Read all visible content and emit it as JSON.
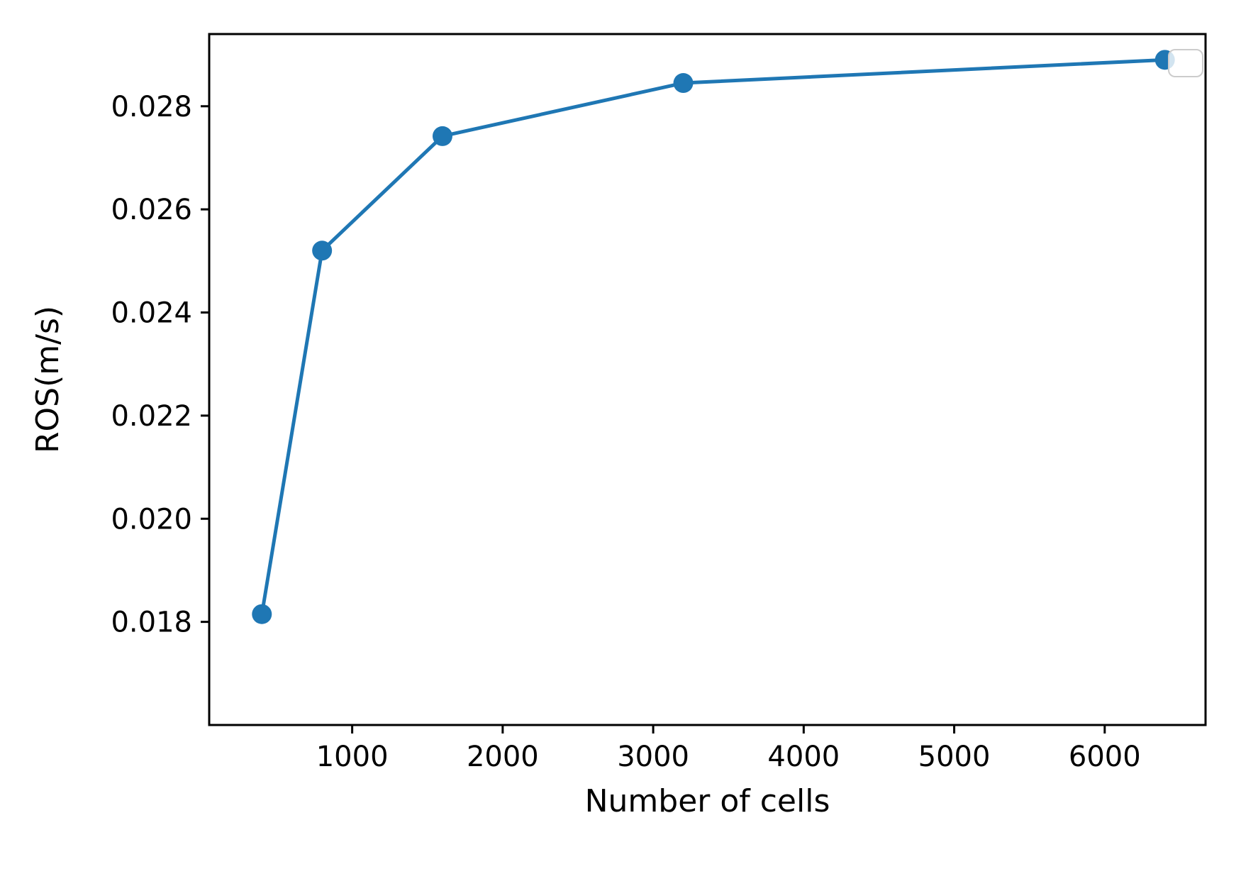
{
  "figure": {
    "background": "#ffffff"
  },
  "chart_data": {
    "type": "line",
    "title": "",
    "xlabel": "Number of cells",
    "ylabel": "ROS(m/s)",
    "x": [
      400,
      800,
      1600,
      3200,
      6400
    ],
    "y": [
      0.01815,
      0.0252,
      0.02742,
      0.02845,
      0.0289
    ],
    "xlim": [
      50,
      6670
    ],
    "ylim": [
      0.016,
      0.0294
    ],
    "xticks": [
      1000,
      2000,
      3000,
      4000,
      5000,
      6000
    ],
    "yticks": [
      0.018,
      0.02,
      0.022,
      0.024,
      0.026,
      0.028
    ],
    "xtick_labels": [
      "1000",
      "2000",
      "3000",
      "4000",
      "5000",
      "6000"
    ],
    "ytick_labels": [
      "0.018",
      "0.020",
      "0.022",
      "0.024",
      "0.026",
      "0.028"
    ],
    "grid": false,
    "legend_position": "upper-right-empty-box",
    "style": {
      "line_color": "#1f77b4",
      "marker_color": "#1f77b4",
      "spine_color": "#000000",
      "tick_color": "#000000",
      "legend_border_color": "#cccccc",
      "legend_fill": "#ffffff",
      "line_width": 5,
      "marker_radius": 14
    }
  }
}
